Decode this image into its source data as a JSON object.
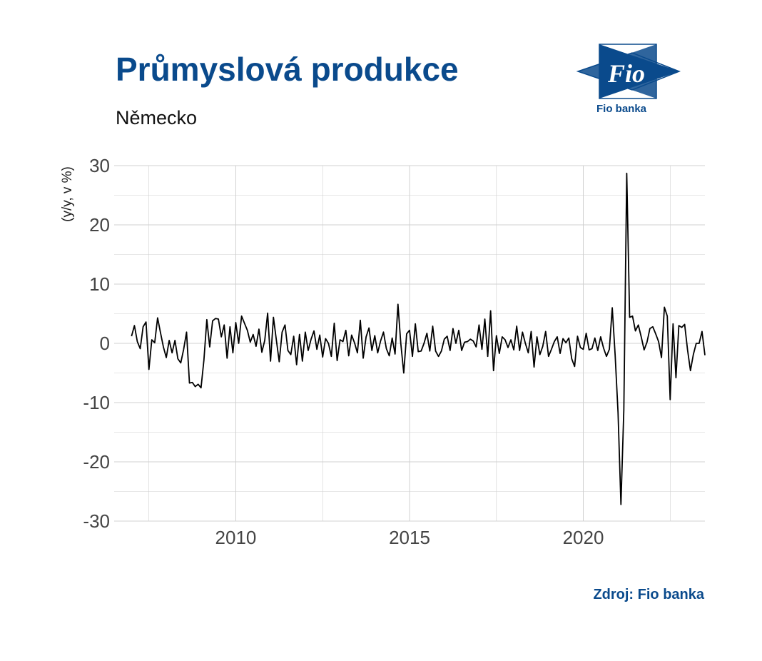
{
  "header": {
    "title": "Průmyslová produkce",
    "subtitle": "Německo"
  },
  "logo": {
    "mark_text": "Fio",
    "name": "Fio banka"
  },
  "footer": {
    "source": "Zdroj: Fio banka"
  },
  "colors": {
    "brand": "#0a4a8c",
    "line": "#000000",
    "grid": "#d0d0d0"
  },
  "chart_data": {
    "type": "line",
    "title": "Průmyslová produkce",
    "subtitle": "Německo",
    "xlabel": "",
    "ylabel": "(y/y, v %)",
    "ylim": [
      -30,
      30
    ],
    "xlim": [
      "2006-07",
      "2023-07"
    ],
    "x_ticks": [
      "2010",
      "2015",
      "2020"
    ],
    "y_ticks": [
      "30",
      "20",
      "10",
      "0",
      "-10",
      "-20",
      "-30"
    ],
    "grid": true,
    "series": [
      {
        "start": "2007-01",
        "frequency": "monthly",
        "values": [
          1.2,
          3.0,
          0.3,
          -0.9,
          2.8,
          3.6,
          -4.4,
          0.6,
          0.1,
          4.3,
          1.8,
          -0.6,
          -2.4,
          0.5,
          -1.6,
          0.5,
          -2.6,
          -3.3,
          -1.0,
          1.9,
          -6.7,
          -6.6,
          -7.3,
          -6.9,
          -7.5,
          -2.8,
          4.0,
          -0.6,
          3.8,
          4.2,
          4.1,
          1.1,
          3.1,
          -2.5,
          2.8,
          -1.6,
          3.5,
          0.0,
          4.6,
          3.4,
          2.2,
          0.2,
          1.5,
          -0.5,
          2.4,
          -1.5,
          0.5,
          5.1,
          -3.0,
          4.4,
          0.6,
          -3.1,
          1.9,
          3.1,
          -1.2,
          -1.9,
          1.2,
          -3.6,
          1.5,
          -3.0,
          1.9,
          -1.2,
          0.7,
          2.1,
          -1.0,
          1.4,
          -2.3,
          0.8,
          0.0,
          -2.2,
          3.4,
          -2.9,
          0.6,
          0.3,
          2.2,
          -2.1,
          1.4,
          0.1,
          -1.6,
          3.9,
          -2.5,
          1.1,
          2.6,
          -1.2,
          1.3,
          -1.6,
          0.4,
          1.9,
          -0.9,
          -2.1,
          0.9,
          -1.8,
          6.6,
          -0.1,
          -5.0,
          1.6,
          2.2,
          -2.2,
          3.3,
          -1.4,
          -1.3,
          0.0,
          1.7,
          -1.3,
          2.9,
          -1.3,
          -2.2,
          -1.3,
          0.7,
          1.2,
          -1.2,
          2.5,
          0.0,
          2.2,
          -1.2,
          0.2,
          0.3,
          0.7,
          0.4,
          -0.6,
          3.1,
          -1.0,
          4.1,
          -2.2,
          5.5,
          -4.6,
          1.3,
          -1.7,
          1.1,
          0.6,
          -0.7,
          0.6,
          -1.1,
          2.9,
          -1.2,
          1.9,
          0.0,
          -1.6,
          2.0,
          -4.0,
          1.1,
          -1.9,
          -0.5,
          2.0,
          -2.2,
          -1.0,
          0.3,
          1.1,
          -1.7,
          0.8,
          0.1,
          0.9,
          -2.6,
          -3.9,
          1.2,
          -0.7,
          -1.0,
          1.7,
          -1.1,
          -0.9,
          0.9,
          -1.2,
          1.1,
          -0.8,
          -2.2,
          -1.0,
          6.0,
          -2.0,
          -11.7,
          -27.2,
          -11.2,
          28.7,
          4.4,
          4.6,
          2.1,
          3.1,
          1.1,
          -1.1,
          0.2,
          2.5,
          2.8,
          1.6,
          0.3,
          -2.4,
          6.1,
          4.6,
          -9.5,
          3.3,
          -5.8,
          3.0,
          2.7,
          3.2,
          -1.1,
          -4.6,
          -1.9,
          0.0,
          0.0,
          2.0,
          -2.0
        ]
      }
    ]
  }
}
